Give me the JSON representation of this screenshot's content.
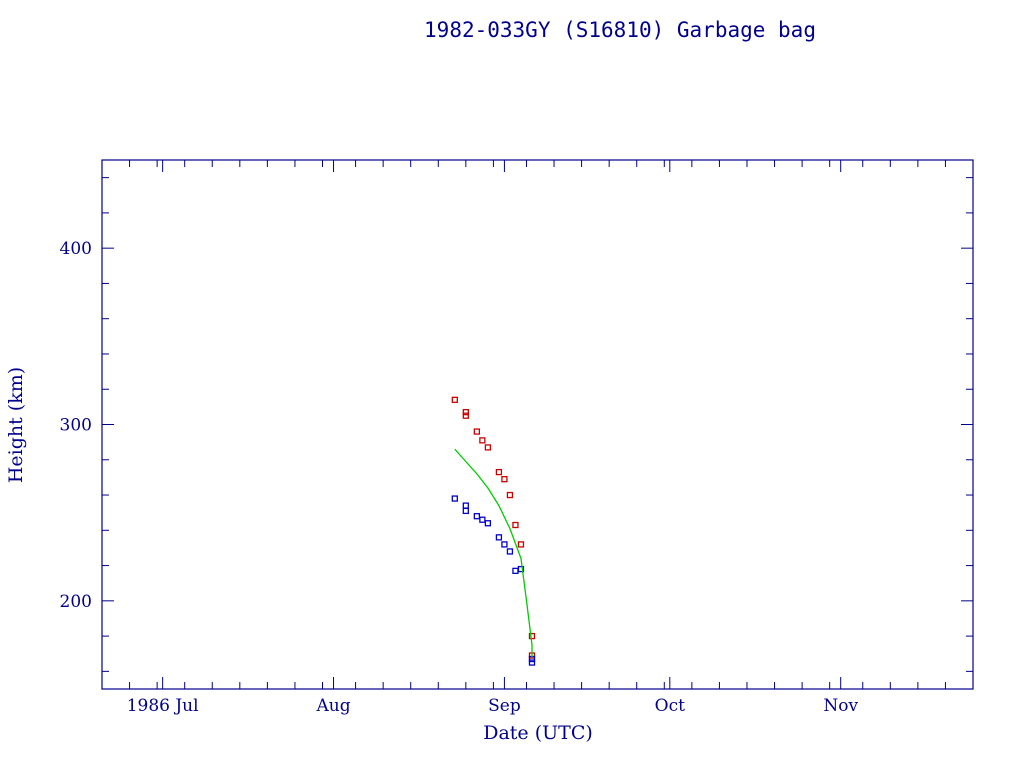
{
  "chart_data": {
    "type": "scatter",
    "title": "1982-033GY (S16810) Garbage bag",
    "xlabel": "Date (UTC)",
    "ylabel": "Height (km)",
    "x_axis_type": "date",
    "xlim": [
      "1986-06-20",
      "1986-11-25"
    ],
    "ylim": [
      150,
      450
    ],
    "x_tick_labels": [
      "1986 Jul",
      "Aug",
      "Sep",
      "Oct",
      "Nov"
    ],
    "x_tick_dates": [
      "1986-07-01",
      "1986-08-01",
      "1986-09-01",
      "1986-10-01",
      "1986-11-01"
    ],
    "y_tick_labels": [
      "200",
      "300",
      "400"
    ],
    "y_ticks": [
      200,
      300,
      400
    ],
    "grid": false,
    "colors": {
      "axis": "#00008b",
      "apogee": "#cc0000",
      "perigee": "#0000cc",
      "mean": "#00cc00"
    },
    "series": [
      {
        "key": "apogee",
        "type": "scatter",
        "color": "#cc0000",
        "points": [
          [
            "1986-08-23",
            314
          ],
          [
            "1986-08-25",
            307
          ],
          [
            "1986-08-25",
            305
          ],
          [
            "1986-08-27",
            296
          ],
          [
            "1986-08-28",
            291
          ],
          [
            "1986-08-29",
            287
          ],
          [
            "1986-08-31",
            273
          ],
          [
            "1986-09-01",
            269
          ],
          [
            "1986-09-02",
            260
          ],
          [
            "1986-09-03",
            243
          ],
          [
            "1986-09-04",
            232
          ],
          [
            "1986-09-06",
            180
          ],
          [
            "1986-09-06",
            169
          ]
        ]
      },
      {
        "key": "perigee",
        "type": "scatter",
        "color": "#0000cc",
        "points": [
          [
            "1986-08-23",
            258
          ],
          [
            "1986-08-25",
            254
          ],
          [
            "1986-08-25",
            251
          ],
          [
            "1986-08-27",
            248
          ],
          [
            "1986-08-28",
            246
          ],
          [
            "1986-08-29",
            244
          ],
          [
            "1986-08-31",
            236
          ],
          [
            "1986-09-01",
            232
          ],
          [
            "1986-09-02",
            228
          ],
          [
            "1986-09-03",
            217
          ],
          [
            "1986-09-04",
            218
          ],
          [
            "1986-09-06",
            167
          ],
          [
            "1986-09-06",
            165
          ]
        ]
      },
      {
        "key": "mean",
        "type": "line",
        "color": "#00cc00",
        "points": [
          [
            "1986-08-23",
            286
          ],
          [
            "1986-08-25",
            279
          ],
          [
            "1986-08-27",
            272
          ],
          [
            "1986-08-29",
            264
          ],
          [
            "1986-08-31",
            254
          ],
          [
            "1986-09-02",
            241
          ],
          [
            "1986-09-04",
            224
          ],
          [
            "1986-09-05",
            200
          ],
          [
            "1986-09-06",
            175
          ],
          [
            "1986-09-06",
            168
          ]
        ]
      }
    ]
  }
}
